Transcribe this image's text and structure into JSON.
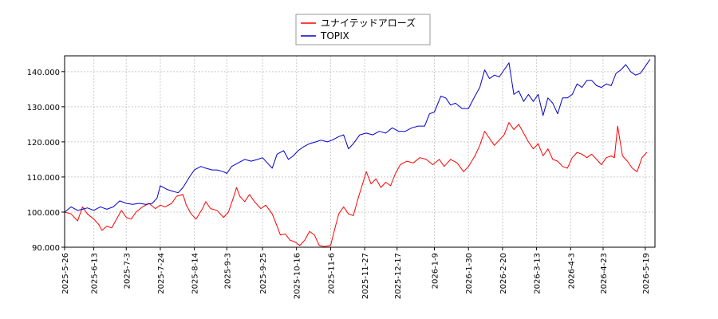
{
  "chart_data": {
    "type": "line",
    "ylim": [
      90,
      144.5
    ],
    "yticks": [
      90,
      100,
      110,
      120,
      130,
      140
    ],
    "ytick_labels": [
      "90.000",
      "100.000",
      "110.000",
      "120.000",
      "130.000",
      "140.000"
    ],
    "xlim": [
      "2025-05-26",
      "2026-05-25"
    ],
    "xticks": [
      "2025-5-26",
      "2025-6-13",
      "2025-7-3",
      "2025-7-24",
      "2025-8-14",
      "2025-9-3",
      "2025-9-25",
      "2025-10-16",
      "2025-11-6",
      "2025-11-27",
      "2025-12-17",
      "2026-1-9",
      "2026-1-30",
      "2026-2-20",
      "2026-3-13",
      "2026-4-3",
      "2026-4-23",
      "2026-5-19"
    ],
    "grid": true,
    "legend_position": "top-center",
    "series": [
      {
        "name": "ユナイテッドアローズ",
        "color": "#ff0000",
        "points": [
          [
            "2025-05-26",
            100
          ],
          [
            "2025-05-30",
            99.5
          ],
          [
            "2025-06-03",
            97.5
          ],
          [
            "2025-06-06",
            101.5
          ],
          [
            "2025-06-09",
            99.5
          ],
          [
            "2025-06-13",
            98
          ],
          [
            "2025-06-16",
            96.5
          ],
          [
            "2025-06-18",
            94.8
          ],
          [
            "2025-06-21",
            96
          ],
          [
            "2025-06-24",
            95.5
          ],
          [
            "2025-06-27",
            98
          ],
          [
            "2025-06-30",
            100.5
          ],
          [
            "2025-07-03",
            98.5
          ],
          [
            "2025-07-06",
            98
          ],
          [
            "2025-07-09",
            100
          ],
          [
            "2025-07-13",
            101.5
          ],
          [
            "2025-07-17",
            102.5
          ],
          [
            "2025-07-21",
            101
          ],
          [
            "2025-07-24",
            102
          ],
          [
            "2025-07-27",
            101.5
          ],
          [
            "2025-07-31",
            102.5
          ],
          [
            "2025-08-03",
            104.5
          ],
          [
            "2025-08-07",
            105
          ],
          [
            "2025-08-09",
            102
          ],
          [
            "2025-08-12",
            99.5
          ],
          [
            "2025-08-15",
            98
          ],
          [
            "2025-08-19",
            101
          ],
          [
            "2025-08-21",
            103
          ],
          [
            "2025-08-24",
            101
          ],
          [
            "2025-08-28",
            100.5
          ],
          [
            "2025-09-01",
            98.5
          ],
          [
            "2025-09-04",
            100
          ],
          [
            "2025-09-07",
            104
          ],
          [
            "2025-09-09",
            107
          ],
          [
            "2025-09-11",
            104.5
          ],
          [
            "2025-09-14",
            103
          ],
          [
            "2025-09-17",
            105
          ],
          [
            "2025-09-20",
            103
          ],
          [
            "2025-09-24",
            101
          ],
          [
            "2025-09-27",
            102
          ],
          [
            "2025-10-01",
            99.5
          ],
          [
            "2025-10-04",
            96
          ],
          [
            "2025-10-06",
            93.5
          ],
          [
            "2025-10-09",
            93.8
          ],
          [
            "2025-10-12",
            92
          ],
          [
            "2025-10-15",
            91.5
          ],
          [
            "2025-10-18",
            90.5
          ],
          [
            "2025-10-21",
            92
          ],
          [
            "2025-10-24",
            94.5
          ],
          [
            "2025-10-27",
            93.5
          ],
          [
            "2025-10-30",
            90.5
          ],
          [
            "2025-11-02",
            90.2
          ],
          [
            "2025-11-06",
            90.5
          ],
          [
            "2025-11-09",
            96
          ],
          [
            "2025-11-11",
            99.5
          ],
          [
            "2025-11-14",
            101.5
          ],
          [
            "2025-11-17",
            99.5
          ],
          [
            "2025-11-20",
            99
          ],
          [
            "2025-11-23",
            104
          ],
          [
            "2025-11-26",
            108.5
          ],
          [
            "2025-11-28",
            111.5
          ],
          [
            "2025-12-01",
            108
          ],
          [
            "2025-12-04",
            109.5
          ],
          [
            "2025-12-07",
            107
          ],
          [
            "2025-12-10",
            108.5
          ],
          [
            "2025-12-13",
            107.5
          ],
          [
            "2025-12-16",
            111
          ],
          [
            "2025-12-19",
            113.5
          ],
          [
            "2025-12-23",
            114.5
          ],
          [
            "2025-12-27",
            114
          ],
          [
            "2025-12-31",
            115.5
          ],
          [
            "2026-01-04",
            115
          ],
          [
            "2026-01-08",
            113.5
          ],
          [
            "2026-01-12",
            115
          ],
          [
            "2026-01-15",
            113
          ],
          [
            "2026-01-19",
            115
          ],
          [
            "2026-01-23",
            114
          ],
          [
            "2026-01-27",
            111.5
          ],
          [
            "2026-01-30",
            113
          ],
          [
            "2026-02-03",
            116
          ],
          [
            "2026-02-06",
            119
          ],
          [
            "2026-02-09",
            123
          ],
          [
            "2026-02-12",
            121
          ],
          [
            "2026-02-15",
            119
          ],
          [
            "2026-02-18",
            120.5
          ],
          [
            "2026-02-21",
            122
          ],
          [
            "2026-02-24",
            125.5
          ],
          [
            "2026-02-27",
            123.5
          ],
          [
            "2026-03-02",
            125
          ],
          [
            "2026-03-05",
            122.5
          ],
          [
            "2026-03-08",
            120
          ],
          [
            "2026-03-11",
            118
          ],
          [
            "2026-03-14",
            119.5
          ],
          [
            "2026-03-17",
            116
          ],
          [
            "2026-03-20",
            118
          ],
          [
            "2026-03-23",
            115
          ],
          [
            "2026-03-26",
            114.5
          ],
          [
            "2026-03-29",
            113
          ],
          [
            "2026-04-01",
            112.5
          ],
          [
            "2026-04-04",
            115.5
          ],
          [
            "2026-04-07",
            117
          ],
          [
            "2026-04-10",
            116.5
          ],
          [
            "2026-04-13",
            115.5
          ],
          [
            "2026-04-16",
            116.5
          ],
          [
            "2026-04-19",
            115
          ],
          [
            "2026-04-22",
            113.5
          ],
          [
            "2026-04-25",
            115.5
          ],
          [
            "2026-04-28",
            116
          ],
          [
            "2026-04-30",
            115.5
          ],
          [
            "2026-05-02",
            124.5
          ],
          [
            "2026-05-05",
            116
          ],
          [
            "2026-05-08",
            114.5
          ],
          [
            "2026-05-11",
            112.5
          ],
          [
            "2026-05-14",
            111.5
          ],
          [
            "2026-05-17",
            115.5
          ],
          [
            "2026-05-20",
            117
          ]
        ]
      },
      {
        "name": "TOPIX",
        "color": "#0000cc",
        "points": [
          [
            "2025-05-26",
            100
          ],
          [
            "2025-05-30",
            101.5
          ],
          [
            "2025-06-03",
            100.5
          ],
          [
            "2025-06-06",
            100.8
          ],
          [
            "2025-06-09",
            101.2
          ],
          [
            "2025-06-13",
            100.5
          ],
          [
            "2025-06-17",
            101.5
          ],
          [
            "2025-06-21",
            100.8
          ],
          [
            "2025-06-25",
            101.5
          ],
          [
            "2025-06-29",
            103.2
          ],
          [
            "2025-07-03",
            102.5
          ],
          [
            "2025-07-07",
            102.2
          ],
          [
            "2025-07-11",
            102.5
          ],
          [
            "2025-07-15",
            102.2
          ],
          [
            "2025-07-19",
            102.5
          ],
          [
            "2025-07-22",
            104
          ],
          [
            "2025-07-24",
            107.5
          ],
          [
            "2025-07-28",
            106.5
          ],
          [
            "2025-07-31",
            106
          ],
          [
            "2025-08-04",
            105.5
          ],
          [
            "2025-08-07",
            107
          ],
          [
            "2025-08-11",
            110
          ],
          [
            "2025-08-14",
            112
          ],
          [
            "2025-08-18",
            113
          ],
          [
            "2025-08-21",
            112.5
          ],
          [
            "2025-08-25",
            112
          ],
          [
            "2025-08-28",
            112
          ],
          [
            "2025-09-01",
            111.5
          ],
          [
            "2025-09-03",
            111
          ],
          [
            "2025-09-06",
            113
          ],
          [
            "2025-09-10",
            114
          ],
          [
            "2025-09-14",
            115
          ],
          [
            "2025-09-18",
            114.5
          ],
          [
            "2025-09-22",
            115
          ],
          [
            "2025-09-25",
            115.5
          ],
          [
            "2025-09-28",
            114
          ],
          [
            "2025-10-01",
            112.5
          ],
          [
            "2025-10-04",
            116.5
          ],
          [
            "2025-10-08",
            117.5
          ],
          [
            "2025-10-11",
            115
          ],
          [
            "2025-10-14",
            116
          ],
          [
            "2025-10-17",
            117.5
          ],
          [
            "2025-10-20",
            118.5
          ],
          [
            "2025-10-24",
            119.5
          ],
          [
            "2025-10-28",
            120
          ],
          [
            "2025-10-31",
            120.5
          ],
          [
            "2025-11-04",
            120
          ],
          [
            "2025-11-07",
            120.5
          ],
          [
            "2025-11-11",
            121.5
          ],
          [
            "2025-11-14",
            122
          ],
          [
            "2025-11-17",
            118
          ],
          [
            "2025-11-20",
            119.5
          ],
          [
            "2025-11-24",
            122
          ],
          [
            "2025-11-28",
            122.5
          ],
          [
            "2025-12-02",
            122
          ],
          [
            "2025-12-06",
            123
          ],
          [
            "2025-12-10",
            122.5
          ],
          [
            "2025-12-14",
            124
          ],
          [
            "2025-12-18",
            123
          ],
          [
            "2025-12-22",
            123
          ],
          [
            "2025-12-26",
            124
          ],
          [
            "2025-12-30",
            124.5
          ],
          [
            "2026-01-03",
            124.5
          ],
          [
            "2026-01-06",
            128
          ],
          [
            "2026-01-09",
            128.5
          ],
          [
            "2026-01-13",
            133
          ],
          [
            "2026-01-16",
            132.5
          ],
          [
            "2026-01-19",
            130.5
          ],
          [
            "2026-01-22",
            131
          ],
          [
            "2026-01-26",
            129.5
          ],
          [
            "2026-01-30",
            129.5
          ],
          [
            "2026-02-03",
            133
          ],
          [
            "2026-02-06",
            135.5
          ],
          [
            "2026-02-09",
            140.5
          ],
          [
            "2026-02-12",
            138
          ],
          [
            "2026-02-15",
            139
          ],
          [
            "2026-02-18",
            138.5
          ],
          [
            "2026-02-21",
            140.5
          ],
          [
            "2026-02-24",
            142.5
          ],
          [
            "2026-02-27",
            133.5
          ],
          [
            "2026-03-02",
            134.5
          ],
          [
            "2026-03-05",
            131.5
          ],
          [
            "2026-03-08",
            133.5
          ],
          [
            "2026-03-11",
            131.5
          ],
          [
            "2026-03-14",
            133.5
          ],
          [
            "2026-03-17",
            127.5
          ],
          [
            "2026-03-20",
            132.5
          ],
          [
            "2026-03-23",
            131
          ],
          [
            "2026-03-26",
            128
          ],
          [
            "2026-03-29",
            132.5
          ],
          [
            "2026-04-01",
            132.5
          ],
          [
            "2026-04-04",
            133.5
          ],
          [
            "2026-04-07",
            136.5
          ],
          [
            "2026-04-10",
            135.5
          ],
          [
            "2026-04-13",
            137.5
          ],
          [
            "2026-04-16",
            137.5
          ],
          [
            "2026-04-19",
            136
          ],
          [
            "2026-04-22",
            135.5
          ],
          [
            "2026-04-25",
            136.5
          ],
          [
            "2026-04-28",
            136
          ],
          [
            "2026-05-01",
            139.5
          ],
          [
            "2026-05-04",
            140.5
          ],
          [
            "2026-05-07",
            142
          ],
          [
            "2026-05-10",
            140
          ],
          [
            "2026-05-13",
            139
          ],
          [
            "2026-05-16",
            139.5
          ],
          [
            "2026-05-19",
            141.5
          ],
          [
            "2026-05-22",
            143.5
          ]
        ]
      }
    ]
  }
}
